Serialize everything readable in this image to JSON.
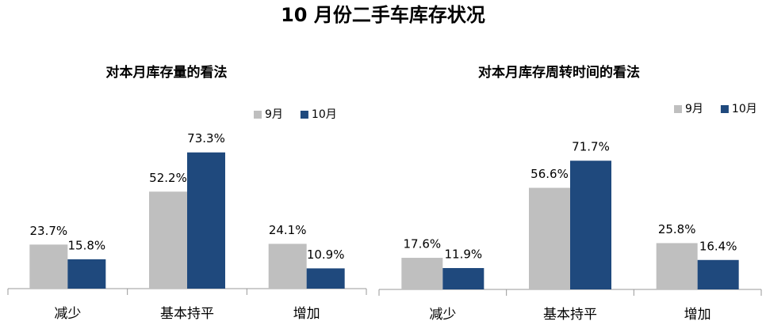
{
  "title": "10 月份二手车库存状况",
  "chart_data": [
    {
      "type": "bar",
      "title": "对本月库存量的看法",
      "categories": [
        "减少",
        "基本持平",
        "增加"
      ],
      "series": [
        {
          "name": "9月",
          "color": "#bfbfbf",
          "values": [
            23.7,
            52.2,
            24.1
          ],
          "value_labels": [
            "23.7%",
            "52.2%",
            "24.1%"
          ]
        },
        {
          "name": "10月",
          "color": "#1f497d",
          "values": [
            15.8,
            73.3,
            10.9
          ],
          "value_labels": [
            "15.8%",
            "73.3%",
            "10.9%"
          ]
        }
      ]
    },
    {
      "type": "bar",
      "title": "对本月库存周转时间的看法",
      "categories": [
        "减少",
        "基本持平",
        "增加"
      ],
      "series": [
        {
          "name": "9月",
          "color": "#bfbfbf",
          "values": [
            17.6,
            56.6,
            25.8
          ],
          "value_labels": [
            "17.6%",
            "56.6%",
            "25.8%"
          ]
        },
        {
          "name": "10月",
          "color": "#1f497d",
          "values": [
            11.9,
            71.7,
            16.4
          ],
          "value_labels": [
            "11.9%",
            "71.7%",
            "16.4%"
          ]
        }
      ]
    }
  ]
}
